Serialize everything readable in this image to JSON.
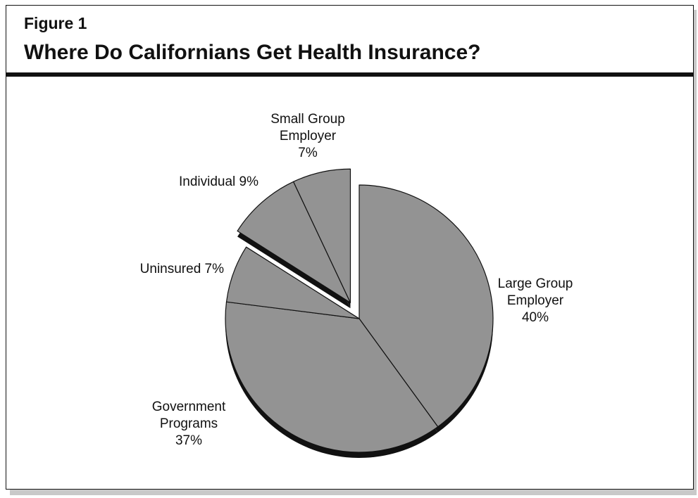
{
  "figure": {
    "label": "Figure 1",
    "title": "Where Do Californians Get Health Insurance?"
  },
  "chart_data": {
    "type": "pie",
    "exploded": [
      "Individual",
      "Small Group Employer"
    ],
    "slices": [
      {
        "name": "Large Group Employer",
        "value": 40,
        "label_lines": [
          "Large Group",
          "Employer",
          "40%"
        ]
      },
      {
        "name": "Government Programs",
        "value": 37,
        "label_lines": [
          "Government",
          "Programs",
          "37%"
        ]
      },
      {
        "name": "Uninsured",
        "value": 7,
        "label_lines": [
          "Uninsured 7%"
        ]
      },
      {
        "name": "Individual",
        "value": 9,
        "label_lines": [
          "Individual 9%"
        ]
      },
      {
        "name": "Small Group Employer",
        "value": 7,
        "label_lines": [
          "Small Group",
          "Employer",
          "7%"
        ]
      }
    ],
    "slice_color": "#939393",
    "shadow_color": "#111111",
    "outline_color": "#111111"
  }
}
